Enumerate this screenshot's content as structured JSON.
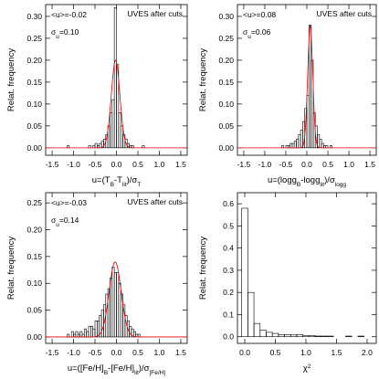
{
  "chart_data": [
    {
      "type": "histogram",
      "y_label": "Relat. frequency",
      "x_label": [
        "u=(T",
        "B",
        "-T",
        "lit",
        ")/σ",
        "T"
      ],
      "x_label_script": "sub",
      "note": "UVES after cuts",
      "mean_label": "<u>=-0.02",
      "sigma_label": [
        "σ",
        "u",
        "=0.10"
      ],
      "curve": {
        "mean": -0.02,
        "sigma": 0.1,
        "peak": 0.2,
        "color": "#e00000"
      },
      "color": "#000000",
      "bins": [
        -1.2,
        -1.15,
        -1.1,
        -1.05,
        -1.0,
        -0.95,
        -0.9,
        -0.85,
        -0.8,
        -0.75,
        -0.7,
        -0.65,
        -0.6,
        -0.55,
        -0.5,
        -0.45,
        -0.4,
        -0.35,
        -0.3,
        -0.25,
        -0.2,
        -0.15,
        -0.1,
        -0.05,
        0,
        0.05,
        0.1,
        0.15,
        0.2,
        0.25,
        0.3,
        0.35,
        0.4,
        0.45,
        0.5,
        0.55,
        0.6,
        0.65,
        0.7
      ],
      "values": [
        0,
        0.005,
        0,
        0,
        0,
        0,
        0,
        0,
        0,
        0,
        0,
        0.005,
        0,
        0.005,
        0.01,
        0.005,
        0.01,
        0.015,
        0.02,
        0.03,
        0.05,
        0.08,
        0.11,
        0.32,
        0.19,
        0.08,
        0.05,
        0.03,
        0.02,
        0.01,
        0.005,
        0.005,
        0,
        0,
        0,
        0,
        0.005,
        0
      ],
      "xlim": [
        -1.65,
        1.65
      ],
      "ylim": [
        -0.017,
        0.327
      ],
      "xticks": [
        -1.5,
        {
          "value": -1,
          "label": "-1.0"
        },
        -0.5,
        {
          "value": 0,
          "label": "0.0"
        },
        0.5,
        {
          "value": 1,
          "label": "1.0"
        },
        1.5
      ],
      "yticks": [
        {
          "value": 0,
          "label": "0.00"
        },
        {
          "value": 0.05,
          "label": "0.05"
        },
        {
          "value": 0.1,
          "label": "0.10"
        },
        {
          "value": 0.15,
          "label": "0.15"
        },
        {
          "value": 0.2,
          "label": "0.20"
        },
        {
          "value": 0.25,
          "label": "0.25"
        },
        {
          "value": 0.3,
          "label": "0.30"
        }
      ]
    },
    {
      "type": "histogram",
      "y_label": "Relat. frequency",
      "x_label": [
        "u=(logg",
        "B",
        "-logg",
        "lit",
        ")/σ",
        "logg"
      ],
      "x_label_script": "sub",
      "note": "UVES after cuts",
      "mean_label": "<u>=0.08",
      "sigma_label": [
        "σ",
        "u",
        "=0.06"
      ],
      "curve": {
        "mean": 0.08,
        "sigma": 0.06,
        "peak": 0.28,
        "color": "#e00000"
      },
      "color": "#000000",
      "bins": [
        -0.7,
        -0.65,
        -0.6,
        -0.55,
        -0.5,
        -0.45,
        -0.4,
        -0.35,
        -0.3,
        -0.25,
        -0.2,
        -0.15,
        -0.1,
        -0.05,
        0,
        0.05,
        0.1,
        0.15,
        0.2,
        0.25,
        0.3,
        0.35,
        0.4,
        0.45,
        0.5,
        0.55,
        0.6,
        0.65,
        0.7
      ],
      "values": [
        0,
        0,
        0.005,
        0,
        0.005,
        0.005,
        0.01,
        0.01,
        0.015,
        0.02,
        0.03,
        0.04,
        0.06,
        0.09,
        0.12,
        0.28,
        0.2,
        0.08,
        0.05,
        0.03,
        0.02,
        0.01,
        0.005,
        0.005,
        0,
        0.005,
        0,
        0
      ],
      "xlim": [
        -1.65,
        1.65
      ],
      "ylim": [
        -0.017,
        0.327
      ],
      "xticks": [
        -1.5,
        {
          "value": -1,
          "label": "-1.0"
        },
        -0.5,
        {
          "value": 0,
          "label": "0.0"
        },
        0.5,
        {
          "value": 1,
          "label": "1.0"
        },
        1.5
      ],
      "yticks": [
        {
          "value": 0,
          "label": "0.00"
        },
        {
          "value": 0.05,
          "label": "0.05"
        },
        {
          "value": 0.1,
          "label": "0.10"
        },
        {
          "value": 0.15,
          "label": "0.15"
        },
        {
          "value": 0.2,
          "label": "0.20"
        },
        {
          "value": 0.25,
          "label": "0.25"
        },
        {
          "value": 0.3,
          "label": "0.30"
        }
      ]
    },
    {
      "type": "histogram",
      "y_label": "Relat. frequency",
      "x_label": [
        "u=([Fe/H]",
        "B",
        "-[Fe/H]",
        "lit",
        ")/σ",
        "[Fe/H]"
      ],
      "x_label_script": "sub",
      "note": "UVES after cuts",
      "mean_label": "<u>=-0.03",
      "sigma_label": [
        "σ",
        "u",
        "=0.14"
      ],
      "curve": {
        "mean": -0.03,
        "sigma": 0.14,
        "peak": 0.14,
        "color": "#e00000"
      },
      "color": "#000000",
      "bins": [
        -1.2,
        -1.15,
        -1.1,
        -1.05,
        -1.0,
        -0.95,
        -0.9,
        -0.85,
        -0.8,
        -0.75,
        -0.7,
        -0.65,
        -0.6,
        -0.55,
        -0.5,
        -0.45,
        -0.4,
        -0.35,
        -0.3,
        -0.25,
        -0.2,
        -0.15,
        -0.1,
        -0.05,
        0,
        0.05,
        0.1,
        0.15,
        0.2,
        0.25,
        0.3,
        0.35,
        0.4,
        0.45,
        0.5,
        0.55,
        0.6
      ],
      "values": [
        0,
        0.005,
        0,
        0.01,
        0.005,
        0.01,
        0.005,
        0.01,
        0.005,
        0.015,
        0.01,
        0.02,
        0.02,
        0.015,
        0.03,
        0.03,
        0.04,
        0.05,
        0.06,
        0.08,
        0.09,
        0.11,
        0.13,
        0.12,
        0.12,
        0.1,
        0.08,
        0.06,
        0.04,
        0.03,
        0.02,
        0.015,
        0.01,
        0.005,
        0.005,
        0
      ],
      "xlim": [
        -1.65,
        1.65
      ],
      "ylim": [
        -0.012,
        0.269
      ],
      "xticks": [
        -1.5,
        {
          "value": -1,
          "label": "-1.0"
        },
        -0.5,
        {
          "value": 0,
          "label": "0.0"
        },
        0.5,
        {
          "value": 1,
          "label": "1.0"
        },
        1.5
      ],
      "yticks": [
        {
          "value": 0,
          "label": "0.00"
        },
        {
          "value": 0.05,
          "label": "0.05"
        },
        {
          "value": 0.1,
          "label": "0.10"
        },
        {
          "value": 0.15,
          "label": "0.15"
        },
        {
          "value": 0.2,
          "label": "0.20"
        },
        {
          "value": 0.25,
          "label": "0.25"
        }
      ]
    },
    {
      "type": "histogram",
      "y_label": "Relat. frequency",
      "x_label": [
        "χ",
        "2"
      ],
      "x_label_script": "sup",
      "color": "#000000",
      "bins": [
        -0.05,
        0.05,
        0.15,
        0.25,
        0.35,
        0.45,
        0.55,
        0.65,
        0.75,
        0.85,
        0.95,
        1.05,
        1.15,
        1.25,
        1.35,
        1.45,
        1.55,
        1.65,
        1.75,
        1.85,
        1.95
      ],
      "values": [
        0.58,
        0.2,
        0.06,
        0.03,
        0.02,
        0.015,
        0.01,
        0.01,
        0.008,
        0.01,
        0.005,
        0.005,
        0.003,
        0.003,
        0.003,
        0,
        0,
        0.003,
        0,
        0.003
      ],
      "xlim": [
        -0.12,
        2.15
      ],
      "ylim": [
        -0.03,
        0.65
      ],
      "xticks": [
        {
          "value": 0,
          "label": "0.0"
        },
        0.5,
        {
          "value": 1,
          "label": "1.0"
        },
        1.5,
        {
          "value": 2,
          "label": "2.0"
        }
      ],
      "yticks": [
        {
          "value": 0,
          "label": "0.0"
        },
        0.1,
        0.2,
        0.3,
        0.4,
        0.5,
        0.6
      ]
    }
  ]
}
